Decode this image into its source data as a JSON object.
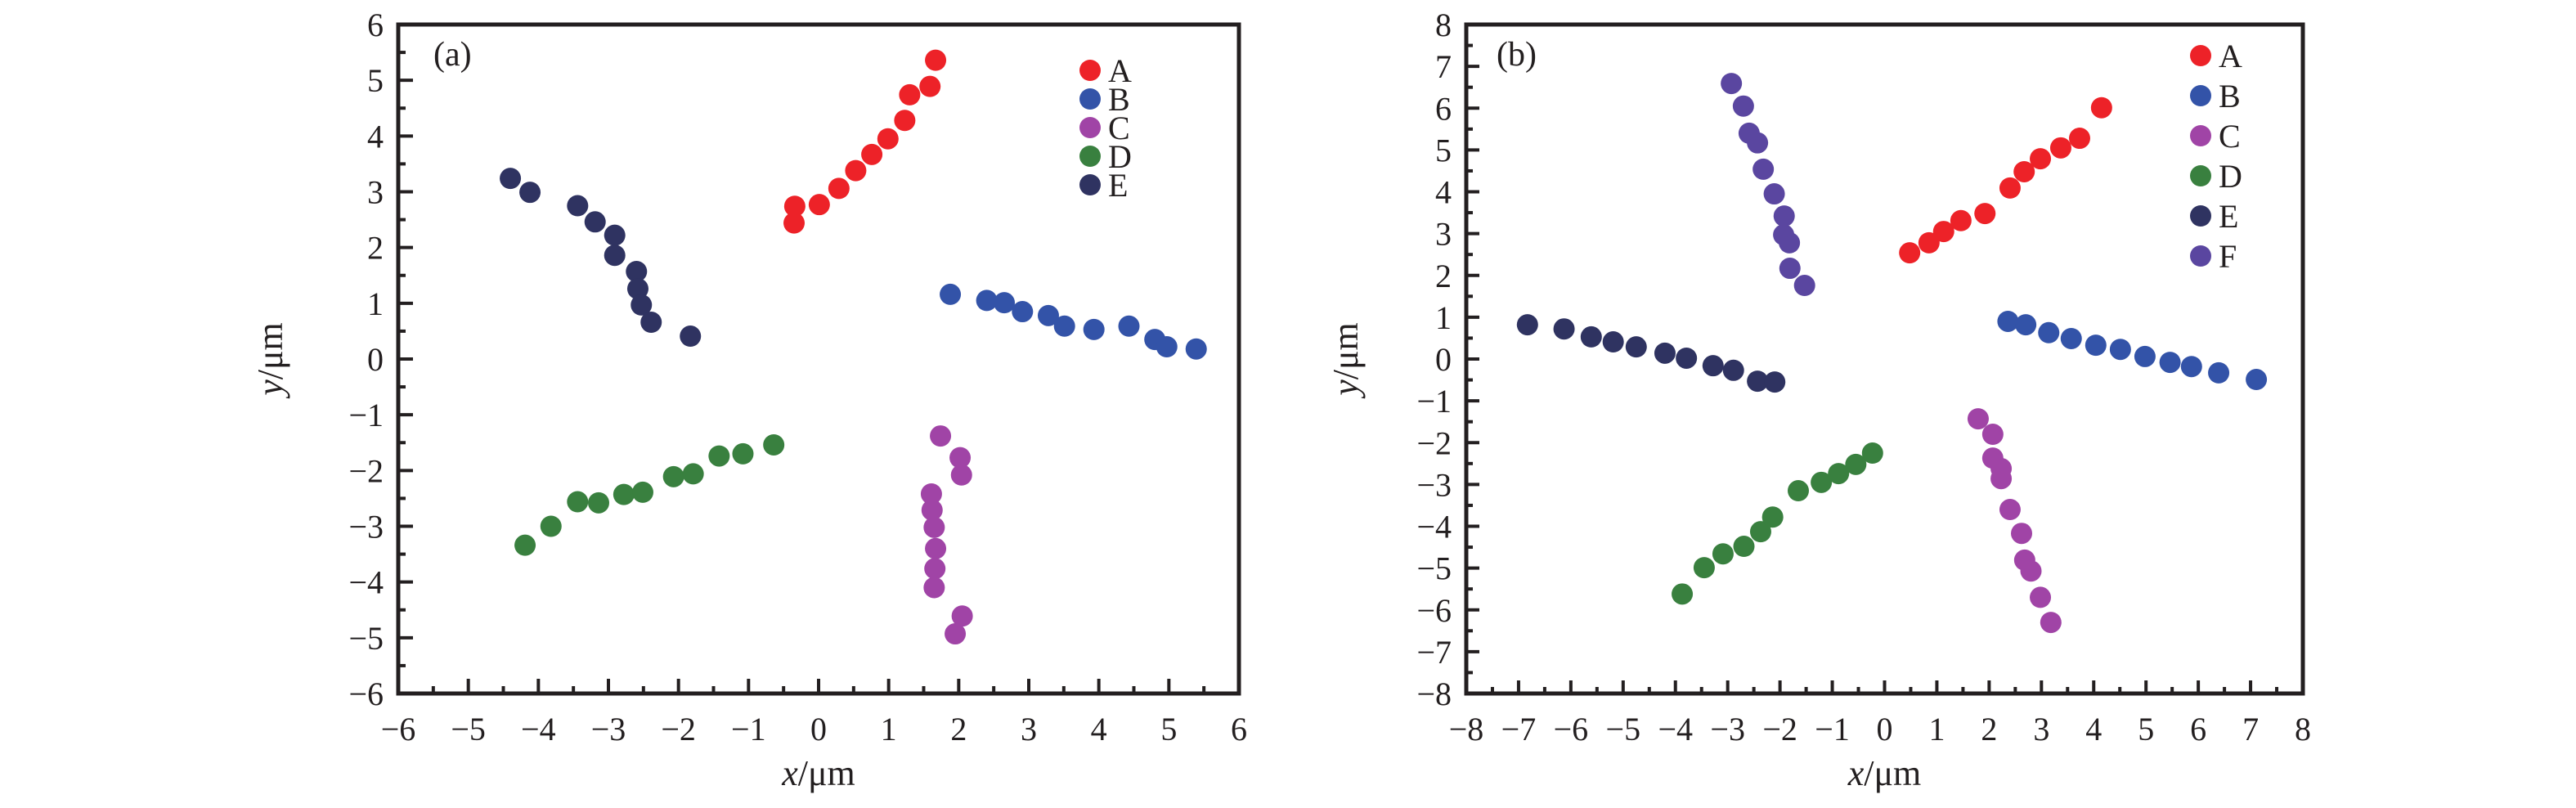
{
  "chart_data": [
    {
      "type": "scatter",
      "panel_label": "(a)",
      "title": "",
      "xlabel": "x/μm",
      "ylabel": "y/μm",
      "xlabel_italic_part": "x",
      "xlabel_unit_part": "/μm",
      "ylabel_italic_part": "y",
      "ylabel_unit_part": "/μm",
      "xlim": [
        -6,
        6
      ],
      "ylim": [
        -6,
        6
      ],
      "xticks": [
        "−6",
        "−5",
        "−4",
        "−3",
        "−2",
        "−1",
        "0",
        "1",
        "2",
        "3",
        "4",
        "5",
        "6"
      ],
      "yticks": [
        "−6",
        "−5",
        "−4",
        "−3",
        "−2",
        "−1",
        "0",
        "1",
        "2",
        "3",
        "4",
        "5",
        "6"
      ],
      "xtick_values": [
        -6,
        -5,
        -4,
        -3,
        -2,
        -1,
        0,
        1,
        2,
        3,
        4,
        5,
        6
      ],
      "ytick_values": [
        -6,
        -5,
        -4,
        -3,
        -2,
        -1,
        0,
        1,
        2,
        3,
        4,
        5,
        6
      ],
      "minor_step": 0.5,
      "grid": false,
      "legend_position": "top-right",
      "series": [
        {
          "name": "A",
          "color": "#ED2228",
          "x": [
            -0.35,
            -0.34,
            0.01,
            0.29,
            0.53,
            0.76,
            0.99,
            1.23,
            1.3,
            1.59,
            1.67
          ],
          "y": [
            2.44,
            2.74,
            2.77,
            3.06,
            3.38,
            3.67,
            3.95,
            4.28,
            4.74,
            4.89,
            5.36
          ]
        },
        {
          "name": "B",
          "color": "#3353A8",
          "x": [
            1.88,
            2.4,
            2.65,
            2.91,
            3.28,
            3.51,
            3.93,
            4.43,
            4.8,
            4.97,
            5.39
          ],
          "y": [
            1.16,
            1.05,
            1.01,
            0.85,
            0.78,
            0.59,
            0.53,
            0.59,
            0.35,
            0.22,
            0.18
          ]
        },
        {
          "name": "C",
          "color": "#A044A6",
          "x": [
            1.74,
            2.02,
            2.04,
            1.61,
            1.62,
            1.65,
            1.67,
            1.66,
            1.65,
            2.05,
            1.95
          ],
          "y": [
            -1.38,
            -1.77,
            -2.08,
            -2.42,
            -2.71,
            -3.02,
            -3.4,
            -3.76,
            -4.1,
            -4.61,
            -4.93
          ]
        },
        {
          "name": "D",
          "color": "#39803F",
          "x": [
            -4.19,
            -3.82,
            -3.44,
            -3.14,
            -2.78,
            -2.51,
            -2.07,
            -1.79,
            -1.42,
            -1.08,
            -0.64
          ],
          "y": [
            -3.34,
            -3.0,
            -2.56,
            -2.58,
            -2.43,
            -2.39,
            -2.11,
            -2.06,
            -1.74,
            -1.7,
            -1.54
          ]
        },
        {
          "name": "E",
          "color": "#2F3361",
          "x": [
            -4.4,
            -4.12,
            -3.44,
            -3.19,
            -2.91,
            -2.91,
            -2.6,
            -2.58,
            -2.53,
            -2.39,
            -1.83
          ],
          "y": [
            3.24,
            2.99,
            2.75,
            2.46,
            2.22,
            1.86,
            1.57,
            1.26,
            0.97,
            0.66,
            0.41
          ]
        }
      ]
    },
    {
      "type": "scatter",
      "panel_label": "(b)",
      "title": "",
      "xlabel": "x/μm",
      "ylabel": "y/μm",
      "xlabel_italic_part": "x",
      "xlabel_unit_part": "/μm",
      "ylabel_italic_part": "y",
      "ylabel_unit_part": "/μm",
      "xlim": [
        -8,
        8
      ],
      "ylim": [
        -8,
        8
      ],
      "xticks": [
        "−8",
        "−7",
        "−6",
        "−5",
        "−4",
        "−3",
        "−2",
        "−1",
        "0",
        "1",
        "2",
        "3",
        "4",
        "5",
        "6",
        "7",
        "8"
      ],
      "yticks": [
        "−8",
        "−7",
        "−6",
        "−5",
        "−4",
        "−3",
        "−2",
        "−1",
        "0",
        "1",
        "2",
        "3",
        "4",
        "5",
        "6",
        "7",
        "8"
      ],
      "xtick_values": [
        -8,
        -7,
        -6,
        -5,
        -4,
        -3,
        -2,
        -1,
        0,
        1,
        2,
        3,
        4,
        5,
        6,
        7,
        8
      ],
      "ytick_values": [
        -8,
        -7,
        -6,
        -5,
        -4,
        -3,
        -2,
        -1,
        0,
        1,
        2,
        3,
        4,
        5,
        6,
        7,
        8
      ],
      "minor_step": 0.5,
      "grid": false,
      "legend_position": "top-right",
      "series": [
        {
          "name": "A",
          "color": "#ED2228",
          "x": [
            0.48,
            0.85,
            1.13,
            1.46,
            1.92,
            2.4,
            2.67,
            2.98,
            3.37,
            3.73,
            4.15
          ],
          "y": [
            2.54,
            2.78,
            3.05,
            3.31,
            3.48,
            4.09,
            4.48,
            4.79,
            5.05,
            5.28,
            6.01
          ]
        },
        {
          "name": "B",
          "color": "#3353A8",
          "x": [
            2.36,
            2.7,
            3.14,
            3.57,
            4.04,
            4.51,
            4.98,
            5.46,
            5.87,
            6.39,
            7.11
          ],
          "y": [
            0.9,
            0.82,
            0.63,
            0.49,
            0.33,
            0.23,
            0.06,
            -0.08,
            -0.18,
            -0.33,
            -0.49
          ]
        },
        {
          "name": "C",
          "color": "#A044A6",
          "x": [
            1.79,
            2.07,
            2.07,
            2.23,
            2.23,
            2.4,
            2.62,
            2.68,
            2.8,
            2.98,
            3.18
          ],
          "y": [
            -1.43,
            -1.8,
            -2.37,
            -2.62,
            -2.86,
            -3.6,
            -4.17,
            -4.81,
            -5.07,
            -5.7,
            -6.3
          ]
        },
        {
          "name": "D",
          "color": "#39803F",
          "x": [
            -3.87,
            -3.45,
            -3.09,
            -2.69,
            -2.37,
            -2.14,
            -1.65,
            -1.21,
            -0.88,
            -0.55,
            -0.23
          ],
          "y": [
            -5.62,
            -4.99,
            -4.66,
            -4.48,
            -4.13,
            -3.78,
            -3.15,
            -2.95,
            -2.74,
            -2.52,
            -2.25
          ]
        },
        {
          "name": "E",
          "color": "#2F3361",
          "x": [
            -6.83,
            -6.13,
            -5.61,
            -5.19,
            -4.75,
            -4.2,
            -3.79,
            -3.28,
            -2.89,
            -2.43,
            -2.1
          ],
          "y": [
            0.82,
            0.72,
            0.53,
            0.41,
            0.29,
            0.14,
            0.02,
            -0.16,
            -0.27,
            -0.53,
            -0.55
          ]
        },
        {
          "name": "F",
          "color": "#5A46A0",
          "x": [
            -2.93,
            -2.7,
            -2.59,
            -2.43,
            -2.32,
            -2.11,
            -1.92,
            -1.93,
            -1.82,
            -1.81,
            -1.53
          ],
          "y": [
            6.59,
            6.05,
            5.4,
            5.17,
            4.54,
            3.95,
            3.42,
            2.97,
            2.78,
            2.17,
            1.76
          ]
        }
      ]
    }
  ]
}
